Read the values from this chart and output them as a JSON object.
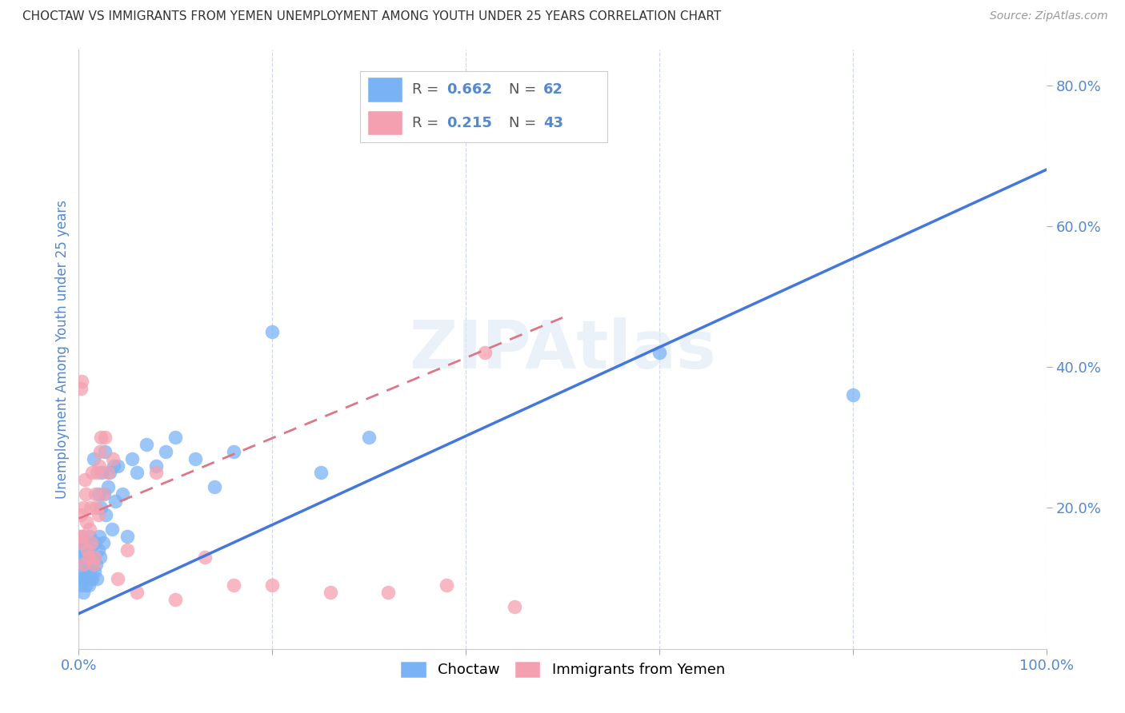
{
  "title": "CHOCTAW VS IMMIGRANTS FROM YEMEN UNEMPLOYMENT AMONG YOUTH UNDER 25 YEARS CORRELATION CHART",
  "source": "Source: ZipAtlas.com",
  "ylabel": "Unemployment Among Youth under 25 years",
  "watermark": "ZIPAtlas",
  "blue_color": "#7ab3f5",
  "pink_color": "#f5a0b0",
  "line_blue": "#4477dd",
  "line_pink": "#dd7788",
  "axis_color": "#5588cc",
  "grid_color": "#d0d8e8",
  "bg_color": "#ffffff",
  "blue_points_x": [
    0.001,
    0.002,
    0.003,
    0.003,
    0.004,
    0.004,
    0.005,
    0.005,
    0.006,
    0.006,
    0.007,
    0.007,
    0.008,
    0.008,
    0.009,
    0.009,
    0.01,
    0.01,
    0.011,
    0.011,
    0.012,
    0.012,
    0.013,
    0.014,
    0.015,
    0.015,
    0.016,
    0.017,
    0.018,
    0.019,
    0.02,
    0.02,
    0.021,
    0.022,
    0.023,
    0.024,
    0.025,
    0.026,
    0.027,
    0.028,
    0.03,
    0.032,
    0.034,
    0.036,
    0.038,
    0.04,
    0.045,
    0.05,
    0.055,
    0.06,
    0.07,
    0.08,
    0.09,
    0.1,
    0.12,
    0.14,
    0.16,
    0.2,
    0.25,
    0.3,
    0.6,
    0.8
  ],
  "blue_points_y": [
    0.1,
    0.13,
    0.09,
    0.14,
    0.11,
    0.16,
    0.08,
    0.12,
    0.1,
    0.15,
    0.09,
    0.13,
    0.11,
    0.14,
    0.1,
    0.12,
    0.09,
    0.13,
    0.11,
    0.16,
    0.1,
    0.14,
    0.12,
    0.1,
    0.13,
    0.27,
    0.11,
    0.15,
    0.12,
    0.1,
    0.14,
    0.22,
    0.16,
    0.13,
    0.2,
    0.25,
    0.15,
    0.22,
    0.28,
    0.19,
    0.23,
    0.25,
    0.17,
    0.26,
    0.21,
    0.26,
    0.22,
    0.16,
    0.27,
    0.25,
    0.29,
    0.26,
    0.28,
    0.3,
    0.27,
    0.23,
    0.28,
    0.45,
    0.25,
    0.3,
    0.42,
    0.36
  ],
  "pink_points_x": [
    0.001,
    0.002,
    0.002,
    0.003,
    0.003,
    0.004,
    0.005,
    0.005,
    0.006,
    0.007,
    0.008,
    0.009,
    0.01,
    0.011,
    0.012,
    0.013,
    0.014,
    0.015,
    0.016,
    0.017,
    0.018,
    0.019,
    0.02,
    0.021,
    0.022,
    0.023,
    0.025,
    0.027,
    0.03,
    0.035,
    0.04,
    0.05,
    0.06,
    0.08,
    0.1,
    0.13,
    0.16,
    0.2,
    0.26,
    0.32,
    0.38,
    0.42,
    0.45
  ],
  "pink_points_y": [
    0.16,
    0.19,
    0.37,
    0.15,
    0.38,
    0.16,
    0.12,
    0.2,
    0.24,
    0.22,
    0.18,
    0.14,
    0.13,
    0.17,
    0.2,
    0.15,
    0.25,
    0.12,
    0.13,
    0.22,
    0.2,
    0.25,
    0.19,
    0.26,
    0.28,
    0.3,
    0.22,
    0.3,
    0.25,
    0.27,
    0.1,
    0.14,
    0.08,
    0.25,
    0.07,
    0.13,
    0.09,
    0.09,
    0.08,
    0.08,
    0.09,
    0.42,
    0.06
  ],
  "blue_line_x": [
    0.0,
    1.0
  ],
  "blue_line_y": [
    0.05,
    0.68
  ],
  "pink_line_x": [
    0.0,
    0.5
  ],
  "pink_line_y": [
    0.185,
    0.47
  ],
  "xlim": [
    0.0,
    1.0
  ],
  "ylim": [
    0.0,
    0.85
  ],
  "xticks": [
    0.0,
    0.2,
    0.4,
    0.6,
    0.8,
    1.0
  ],
  "xticklabels": [
    "0.0%",
    "",
    "",
    "",
    "",
    "100.0%"
  ],
  "yticks_right": [
    0.2,
    0.4,
    0.6,
    0.8
  ],
  "yticklabels_right": [
    "20.0%",
    "40.0%",
    "60.0%",
    "80.0%"
  ],
  "legend1_color": "#7ab3f5",
  "legend2_color": "#f5a0b0",
  "legend1_r": "0.662",
  "legend1_n": "62",
  "legend2_r": "0.215",
  "legend2_n": "43"
}
